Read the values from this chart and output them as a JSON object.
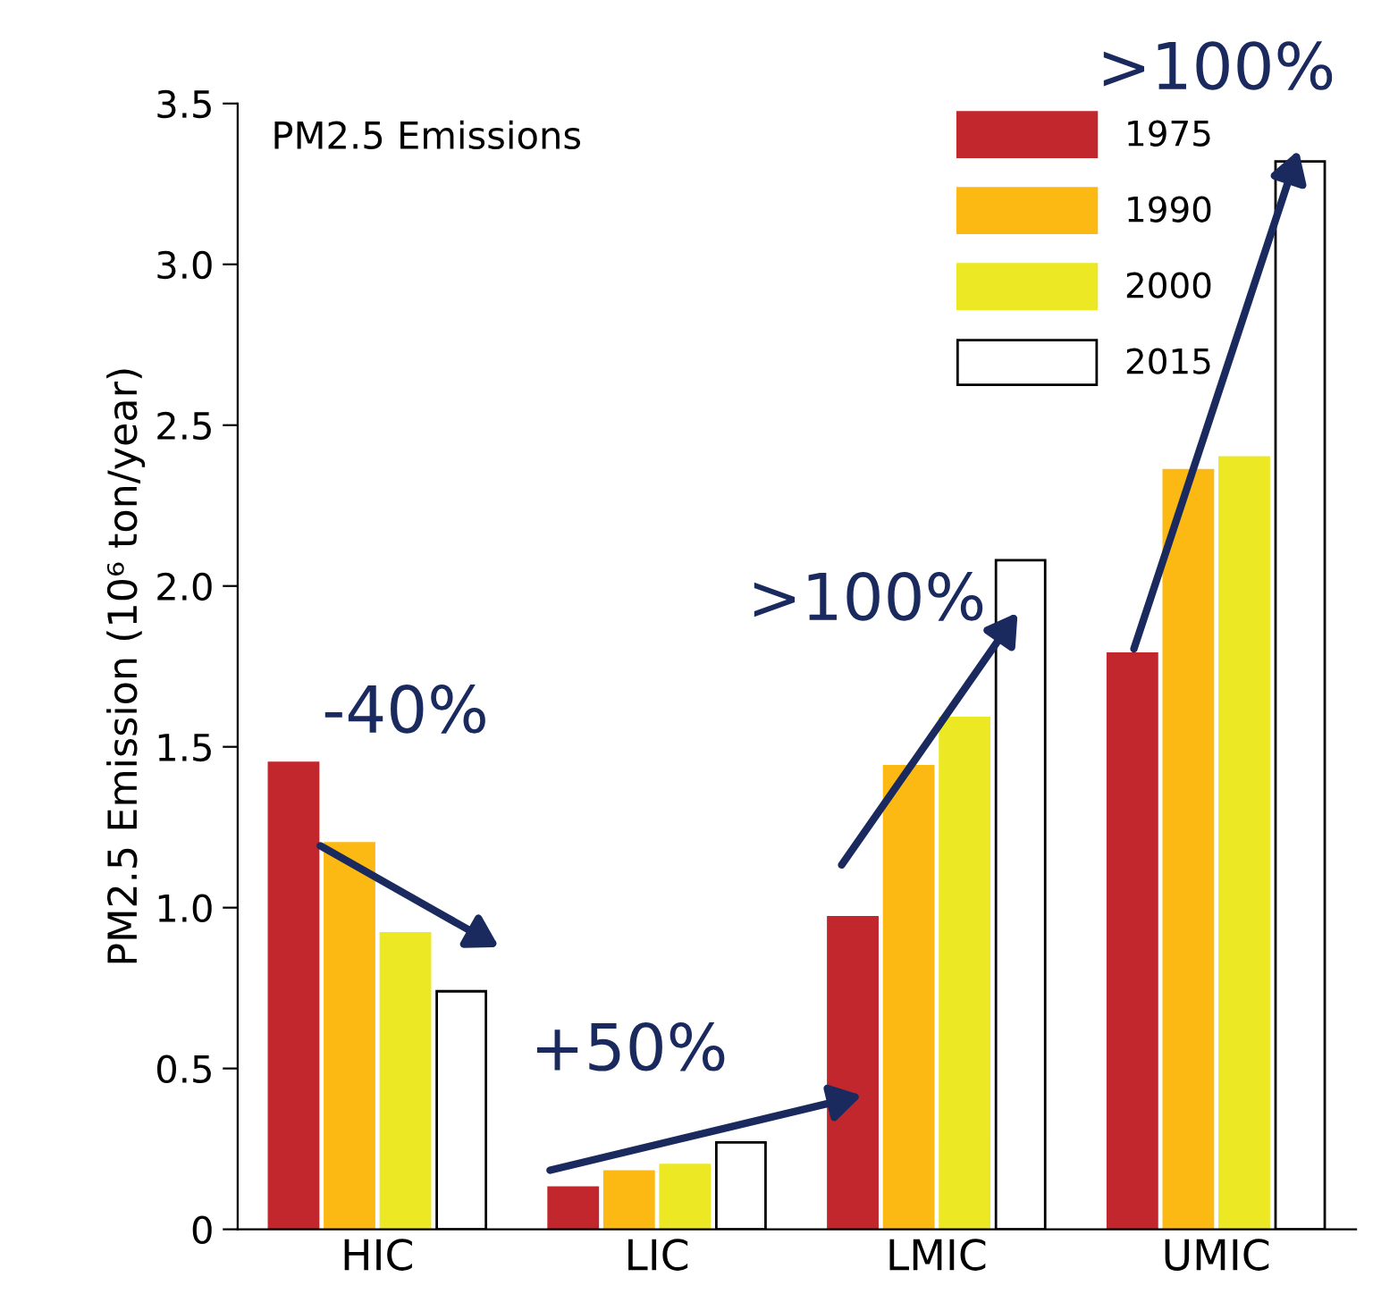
{
  "chart_data": {
    "type": "bar",
    "title": "PM2.5 Emissions",
    "ylabel": "PM2.5 Emission (10⁶ ton/year)",
    "categories": [
      "HIC",
      "LIC",
      "LMIC",
      "UMIC"
    ],
    "series": [
      {
        "name": "1975",
        "color": "#c1272d",
        "values": [
          1.45,
          0.13,
          0.97,
          1.79
        ]
      },
      {
        "name": "1990",
        "color": "#fdb913",
        "values": [
          1.2,
          0.18,
          1.44,
          2.36
        ]
      },
      {
        "name": "2000",
        "color": "#ece824",
        "values": [
          0.92,
          0.2,
          1.59,
          2.4
        ]
      },
      {
        "name": "2015",
        "color": "#ffffff",
        "values": [
          0.74,
          0.27,
          2.08,
          3.32
        ]
      }
    ],
    "ylim": [
      0,
      3.5
    ],
    "yticks": [
      0,
      0.5,
      {
        "value": 1,
        "label": "1.0"
      },
      1.5,
      {
        "value": 2,
        "label": "2.0"
      },
      2.5,
      {
        "value": 3,
        "label": "3.0"
      },
      3.5
    ],
    "annotations": [
      "-40%",
      "+50%",
      ">100%",
      ">100%"
    ],
    "legend": "top right",
    "grid": false
  }
}
